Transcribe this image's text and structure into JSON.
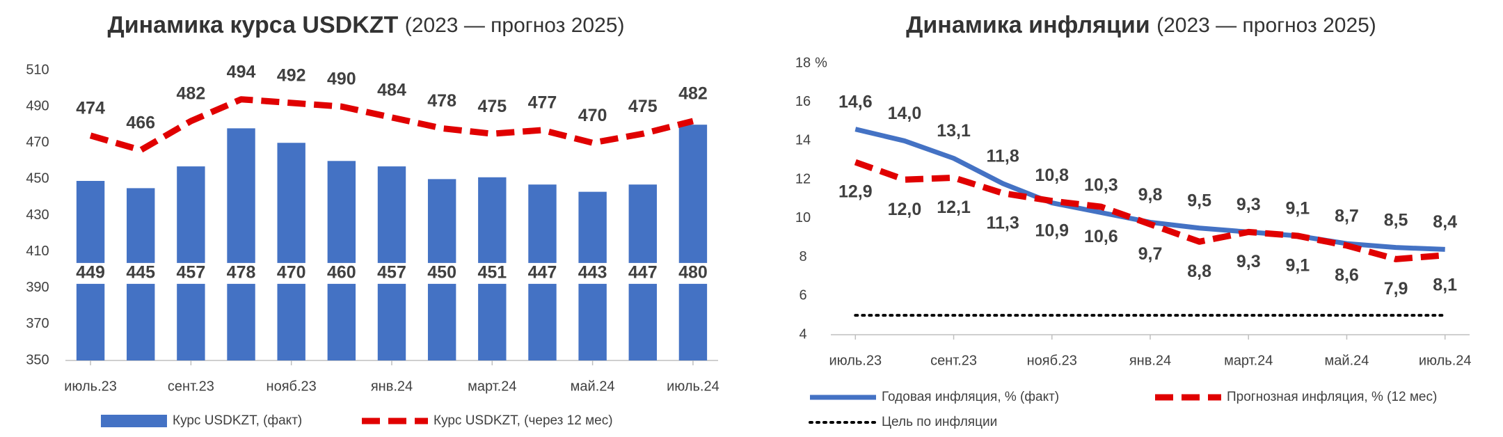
{
  "chart_data": [
    {
      "type": "bar",
      "title": "Динамика курса USDKZT",
      "subtitle": "(2023 — прогноз 2025)",
      "categories": [
        "июль.23",
        null,
        "сент.23",
        null,
        "нояб.23",
        null,
        "янв.24",
        null,
        "март.24",
        null,
        "май.24",
        null,
        "июль.24"
      ],
      "series": [
        {
          "name": "Курс USDKZT, (факт)",
          "type": "bar",
          "color": "#4472c4",
          "values": [
            449,
            445,
            457,
            478,
            470,
            460,
            457,
            450,
            451,
            447,
            443,
            447,
            480
          ]
        },
        {
          "name": "Курс USDKZT, (через 12 мес)",
          "type": "line",
          "style": "dashed",
          "color": "#e00000",
          "values": [
            474,
            466,
            482,
            494,
            492,
            490,
            484,
            478,
            475,
            477,
            470,
            475,
            482
          ]
        }
      ],
      "ylim": [
        350,
        510
      ],
      "yticks": [
        350,
        370,
        390,
        410,
        430,
        450,
        470,
        490,
        510
      ],
      "grid": false
    },
    {
      "type": "line",
      "title": "Динамика инфляции",
      "subtitle": "(2023 — прогноз 2025)",
      "y_unit": "%",
      "categories": [
        "июль.23",
        null,
        "сент.23",
        null,
        "нояб.23",
        null,
        "янв.24",
        null,
        "март.24",
        null,
        "май.24",
        null,
        "июль.24"
      ],
      "series": [
        {
          "name": "Годовая инфляция, % (факт)",
          "style": "solid",
          "color": "#4472c4",
          "label_side": "above",
          "values": [
            14.6,
            14.0,
            13.1,
            11.8,
            10.8,
            10.3,
            9.8,
            9.5,
            9.3,
            9.1,
            8.7,
            8.5,
            8.4
          ],
          "value_labels": [
            "14,6",
            "14,0",
            "13,1",
            "11,8",
            "10,8",
            "10,3",
            "9,8",
            "9,5",
            "9,3",
            "9,1",
            "8,7",
            "8,5",
            "8,4"
          ]
        },
        {
          "name": "Прогнозная инфляция, % (12 мес)",
          "style": "dashed",
          "color": "#e00000",
          "label_side": "below",
          "values": [
            12.9,
            12.0,
            12.1,
            11.3,
            10.9,
            10.6,
            9.7,
            8.8,
            9.3,
            9.1,
            8.6,
            7.9,
            8.1
          ],
          "value_labels": [
            "12,9",
            "12,0",
            "12,1",
            "11,3",
            "10,9",
            "10,6",
            "9,7",
            "8,8",
            "9,3",
            "9,1",
            "8,6",
            "7,9",
            "8,1"
          ]
        },
        {
          "name": "Цель по инфляции",
          "style": "dotted",
          "color": "#000000",
          "values": [
            5,
            5,
            5,
            5,
            5,
            5,
            5,
            5,
            5,
            5,
            5,
            5,
            5
          ]
        }
      ],
      "ylim": [
        4,
        18
      ],
      "yticks": [
        4,
        6,
        8,
        10,
        12,
        14,
        16,
        18
      ],
      "grid": false
    }
  ]
}
